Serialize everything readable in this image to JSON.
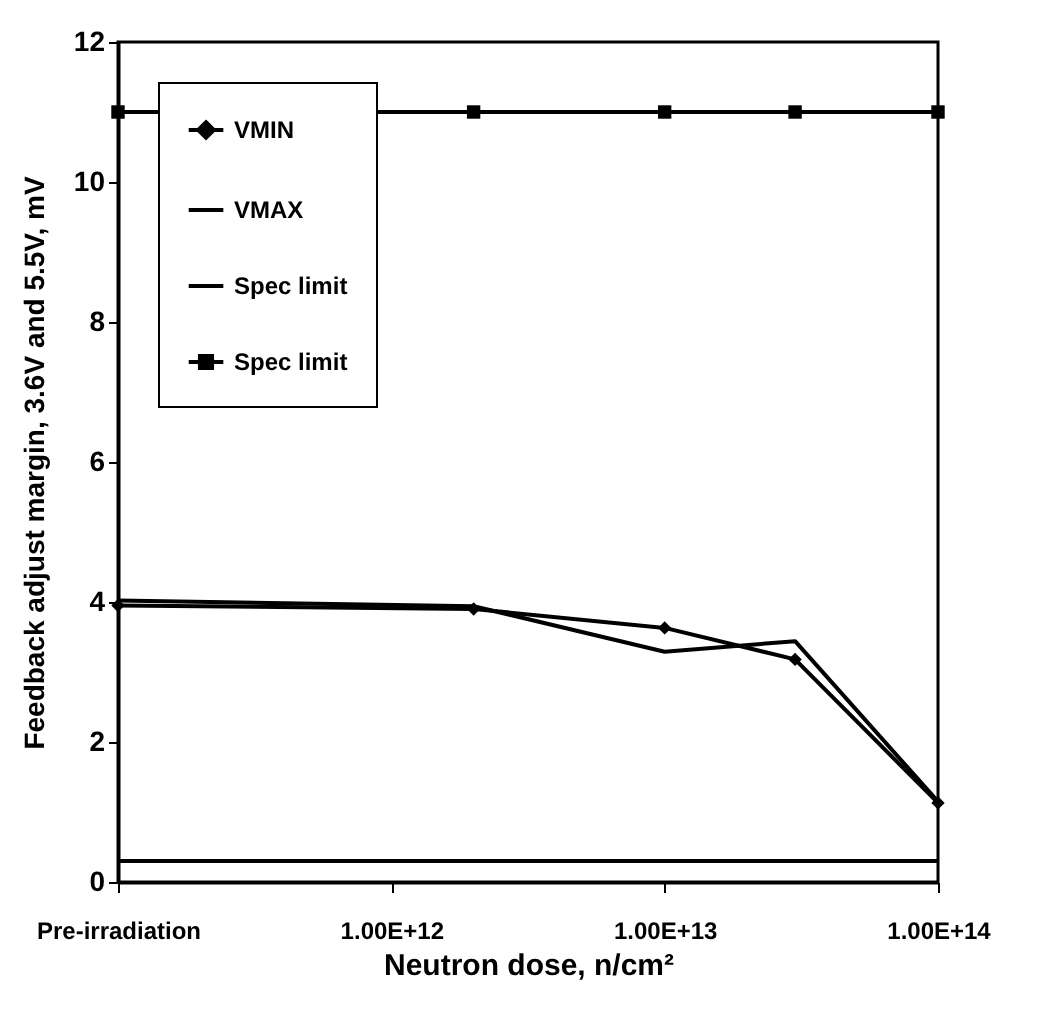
{
  "chart_data": {
    "type": "line",
    "xlabel": "Neutron dose, n/cm²",
    "ylabel": "Feedback adjust margin, 3.6V and 5.5V, mV",
    "x": [
      100000000000.0,
      2000000000000.0,
      10000000000000.0,
      30000000000000.0,
      100000000000000.0
    ],
    "series": [
      {
        "name": "VMIN",
        "color": "#000000",
        "marker": "diamond",
        "values": [
          3.95,
          3.9,
          3.63,
          3.18,
          1.13
        ]
      },
      {
        "name": "VMAX",
        "color": "#000000",
        "marker": "none",
        "values": [
          4.02,
          3.94,
          3.29,
          3.44,
          1.15
        ]
      },
      {
        "name": "Spec limit",
        "color": "#000000",
        "marker": "none",
        "values": [
          0.3,
          0.3,
          0.3,
          0.3,
          0.3
        ]
      },
      {
        "name": "Spec limit",
        "color": "#000000",
        "marker": "square",
        "values": [
          11,
          11,
          11,
          11,
          11
        ]
      }
    ],
    "log": "x",
    "xlim": [
      100000000000.0,
      100000000000000.0
    ],
    "xticks": [
      {
        "value": 100000000000.0,
        "label": "Pre-irradiation"
      },
      {
        "value": 1000000000000.0,
        "label": "1.00E+12"
      },
      {
        "value": 10000000000000.0,
        "label": "1.00E+13"
      },
      {
        "value": 100000000000000.0,
        "label": "1.00E+14"
      }
    ],
    "ylim": [
      0,
      12
    ],
    "yticks": [
      0,
      2,
      4,
      6,
      8,
      10,
      12
    ],
    "legend": "top left"
  }
}
